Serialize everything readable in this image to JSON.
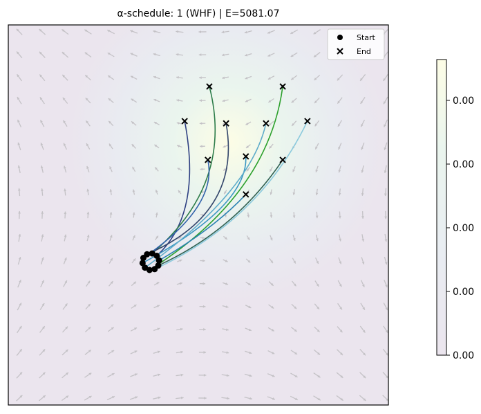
{
  "chart_data": {
    "type": "line",
    "title": "α-schedule: 1 (WHF) | E=5081.07",
    "xlabel": "",
    "ylabel": "",
    "axes_visible": false,
    "grid": false,
    "xlim": [
      0,
      1
    ],
    "ylim": [
      0,
      1
    ],
    "legend": {
      "placement": "top-right",
      "entries": [
        {
          "label": "Start",
          "marker": "circle",
          "color": "#000000"
        },
        {
          "label": "End",
          "marker": "x",
          "color": "#000000"
        }
      ]
    },
    "background": {
      "type": "heatmap",
      "low_color": "#ebe5ee",
      "high_color": "#fdfde6",
      "peak": [
        0.59,
        0.7
      ]
    },
    "quiver": {
      "color": "#c4c2c6",
      "grid": 17
    },
    "colorbar": {
      "tick_labels": [
        "0.00",
        "0.00",
        "0.00",
        "0.00",
        "0.00"
      ],
      "colors": [
        "#ebe5ee",
        "#e9edf2",
        "#eaf5ee",
        "#fdfde6"
      ]
    },
    "start_center": [
      0.375,
      0.377
    ],
    "start_radius": 0.022,
    "trajectories": [
      {
        "color": "#2d3f82",
        "end": [
          0.464,
          0.747
        ],
        "mid": [
          0.469,
          0.536
        ]
      },
      {
        "color": "#2e7d4a",
        "end": [
          0.529,
          0.838
        ],
        "mid": [
          0.524,
          0.601
        ]
      },
      {
        "color": "#33466b",
        "end": [
          0.573,
          0.741
        ],
        "mid": [
          0.542,
          0.537
        ]
      },
      {
        "color": "#3263ab",
        "end": [
          0.525,
          0.645
        ],
        "mid": [
          0.496,
          0.519
        ]
      },
      {
        "color": "#3a96c2",
        "end": [
          0.625,
          0.654
        ],
        "mid": [
          0.56,
          0.519
        ]
      },
      {
        "color": "#5eacca",
        "end": [
          0.678,
          0.741
        ],
        "mid": [
          0.578,
          0.556
        ]
      },
      {
        "color": "#2ca02c",
        "end": [
          0.722,
          0.838
        ],
        "mid": [
          0.615,
          0.574
        ]
      },
      {
        "color": "#8ccadd",
        "end": [
          0.787,
          0.747
        ],
        "mid": [
          0.624,
          0.519
        ]
      },
      {
        "color": "#2f6152",
        "end": [
          0.722,
          0.645
        ],
        "mid": [
          0.578,
          0.483
        ]
      },
      {
        "color": "#2a82b2",
        "end": [
          0.625,
          0.554
        ],
        "mid": [
          0.524,
          0.464
        ]
      }
    ]
  }
}
